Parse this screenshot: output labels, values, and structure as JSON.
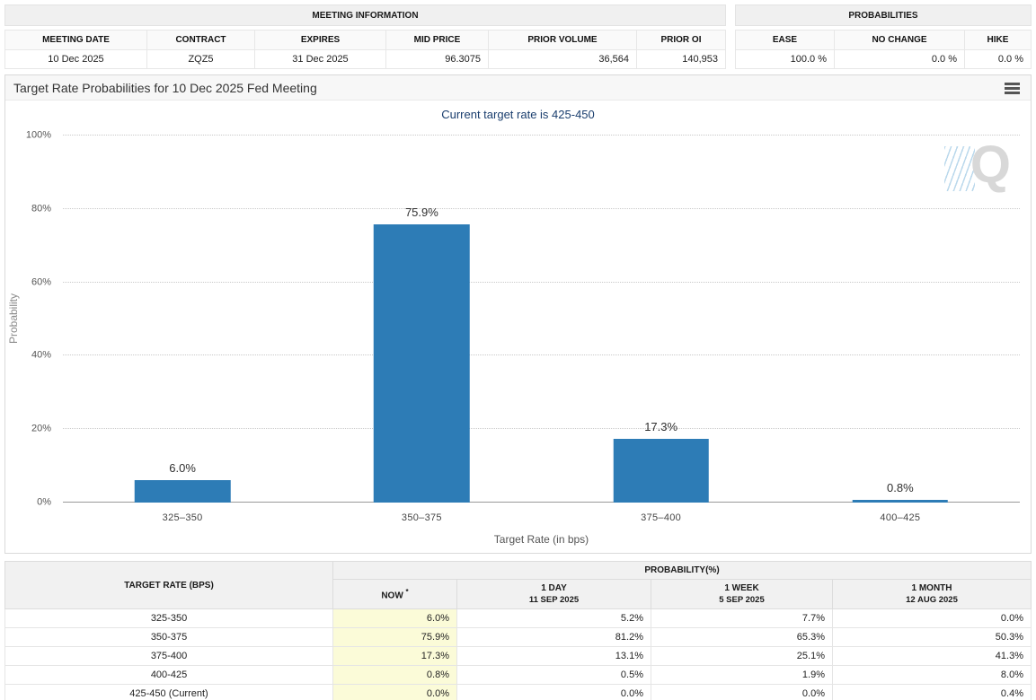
{
  "meeting_info": {
    "title": "MEETING INFORMATION",
    "columns": [
      "MEETING DATE",
      "CONTRACT",
      "EXPIRES",
      "MID PRICE",
      "PRIOR VOLUME",
      "PRIOR OI"
    ],
    "values": [
      "10 Dec 2025",
      "ZQZ5",
      "31 Dec 2025",
      "96.3075",
      "36,564",
      "140,953"
    ]
  },
  "probabilities_summary": {
    "title": "PROBABILITIES",
    "columns": [
      "EASE",
      "NO CHANGE",
      "HIKE"
    ],
    "values": [
      "100.0 %",
      "0.0 %",
      "0.0 %"
    ]
  },
  "chart_data": {
    "type": "bar",
    "title": "Target Rate Probabilities for 10 Dec 2025 Fed Meeting",
    "subtitle": "Current target rate is 425-450",
    "xlabel": "Target Rate (in bps)",
    "ylabel": "Probability",
    "categories": [
      "325–350",
      "350–375",
      "375–400",
      "400–425"
    ],
    "values": [
      6.0,
      75.9,
      17.3,
      0.8
    ],
    "value_labels": [
      "6.0%",
      "75.9%",
      "17.3%",
      "0.8%"
    ],
    "ylim": [
      0,
      100
    ],
    "yticks": [
      {
        "value": 0,
        "label": "0%"
      },
      {
        "value": 20,
        "label": "20%"
      },
      {
        "value": 40,
        "label": "40%"
      },
      {
        "value": 60,
        "label": "60%"
      },
      {
        "value": 80,
        "label": "80%"
      },
      {
        "value": 100,
        "label": "100%"
      }
    ],
    "grid": true,
    "legend": false,
    "bar_color": "#2d7cb6",
    "watermark": "Q"
  },
  "probability_table": {
    "col_target_rate": "TARGET RATE (BPS)",
    "col_probability": "PROBABILITY(%)",
    "sub_headers": [
      {
        "label": "NOW",
        "sup": "*",
        "date": ""
      },
      {
        "label": "1 DAY",
        "sup": "",
        "date": "11 SEP 2025"
      },
      {
        "label": "1 WEEK",
        "sup": "",
        "date": "5 SEP 2025"
      },
      {
        "label": "1 MONTH",
        "sup": "",
        "date": "12 AUG 2025"
      }
    ],
    "rows": [
      {
        "rate": "325-350",
        "values": [
          "6.0%",
          "5.2%",
          "7.7%",
          "0.0%"
        ]
      },
      {
        "rate": "350-375",
        "values": [
          "75.9%",
          "81.2%",
          "65.3%",
          "50.3%"
        ]
      },
      {
        "rate": "375-400",
        "values": [
          "17.3%",
          "13.1%",
          "25.1%",
          "41.3%"
        ]
      },
      {
        "rate": "400-425",
        "values": [
          "0.8%",
          "0.5%",
          "1.9%",
          "8.0%"
        ]
      },
      {
        "rate": "425-450 (Current)",
        "values": [
          "0.0%",
          "0.0%",
          "0.0%",
          "0.4%"
        ]
      }
    ],
    "now_highlight_color": "#fbfbd8"
  }
}
